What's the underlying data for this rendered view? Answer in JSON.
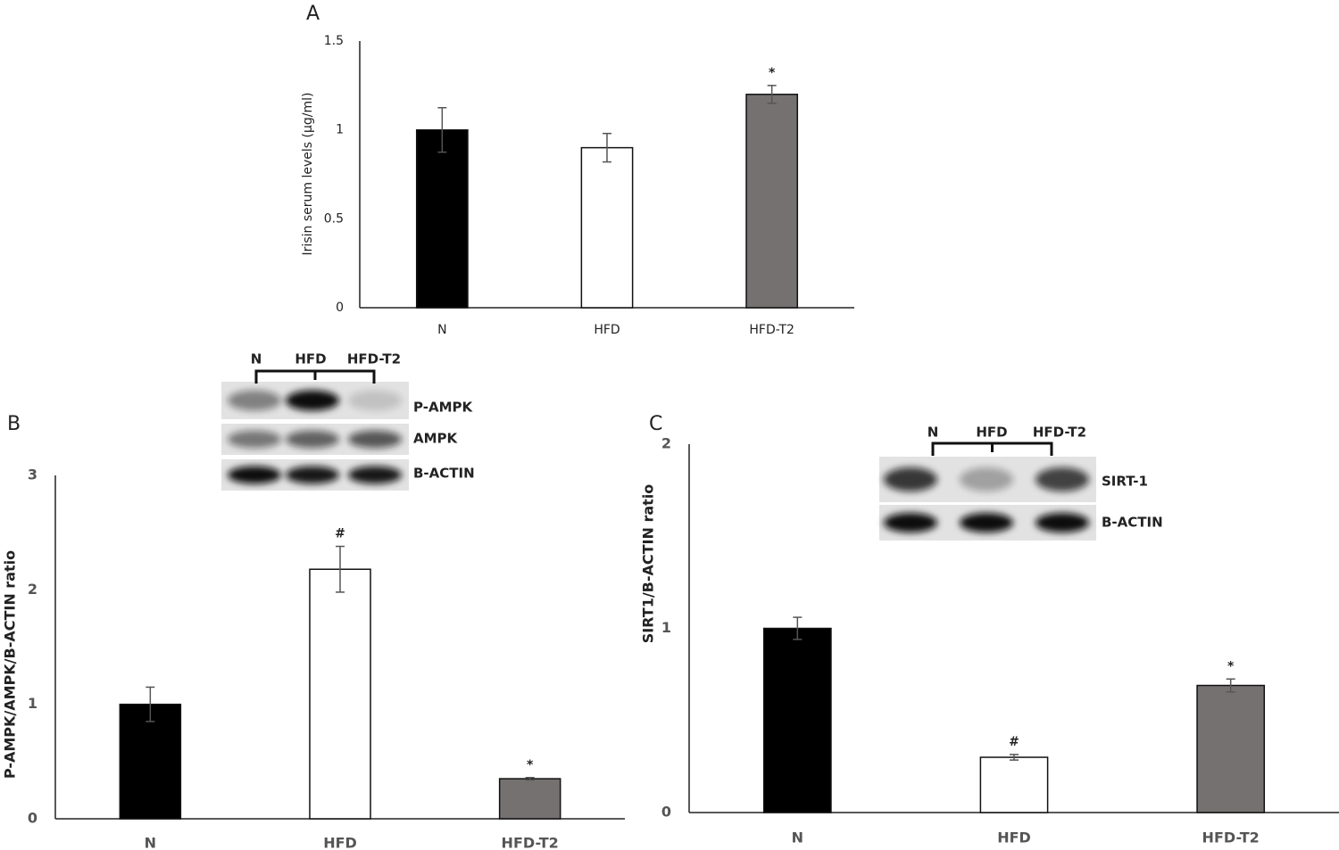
{
  "chart_data": [
    {
      "type": "bar",
      "panel": "A",
      "y_label": "Irisin serum levels (µg/ml)",
      "categories": [
        "N",
        "HFD",
        "HFD-T2"
      ],
      "values": [
        1.0,
        0.9,
        1.2
      ],
      "errors": [
        0.125,
        0.08,
        0.05
      ],
      "colors": [
        "#000000",
        "#ffffff",
        "#767171"
      ],
      "ylim": [
        0,
        1.5
      ],
      "yticks": [
        0,
        0.5,
        1,
        1.5
      ],
      "grid": false,
      "annotations": [
        {
          "text": "*",
          "category": "HFD-T2"
        }
      ]
    },
    {
      "type": "bar",
      "panel": "B",
      "y_label": "P-AMPK/AMPK/B-ACTIN ratio",
      "categories": [
        "N",
        "HFD",
        "HFD-T2"
      ],
      "values": [
        1.0,
        2.18,
        0.35
      ],
      "errors": [
        0.15,
        0.2,
        0.01
      ],
      "colors": [
        "#000000",
        "#ffffff",
        "#767171"
      ],
      "ylim": [
        0,
        3
      ],
      "yticks": [
        0,
        1,
        2,
        3
      ],
      "grid": false,
      "annotations": [
        {
          "text": "#",
          "category": "HFD"
        },
        {
          "text": "*",
          "category": "HFD-T2"
        }
      ],
      "inset": {
        "lanes": [
          "N",
          "HFD",
          "HFD-T2"
        ],
        "bands": [
          "P-AMPK",
          "AMPK",
          "B-ACTIN"
        ]
      }
    },
    {
      "type": "bar",
      "panel": "C",
      "y_label": "SIRT1/B-ACTIN ratio",
      "categories": [
        "N",
        "HFD",
        "HFD-T2"
      ],
      "values": [
        1.0,
        0.3,
        0.69
      ],
      "errors": [
        0.06,
        0.015,
        0.035
      ],
      "colors": [
        "#000000",
        "#ffffff",
        "#767171"
      ],
      "ylim": [
        0,
        2
      ],
      "yticks": [
        0,
        1,
        2
      ],
      "grid": false,
      "annotations": [
        {
          "text": "#",
          "category": "HFD"
        },
        {
          "text": "*",
          "category": "HFD-T2"
        }
      ],
      "inset": {
        "lanes": [
          "N",
          "HFD",
          "HFD-T2"
        ],
        "bands": [
          "SIRT-1",
          "B-ACTIN"
        ]
      }
    }
  ]
}
